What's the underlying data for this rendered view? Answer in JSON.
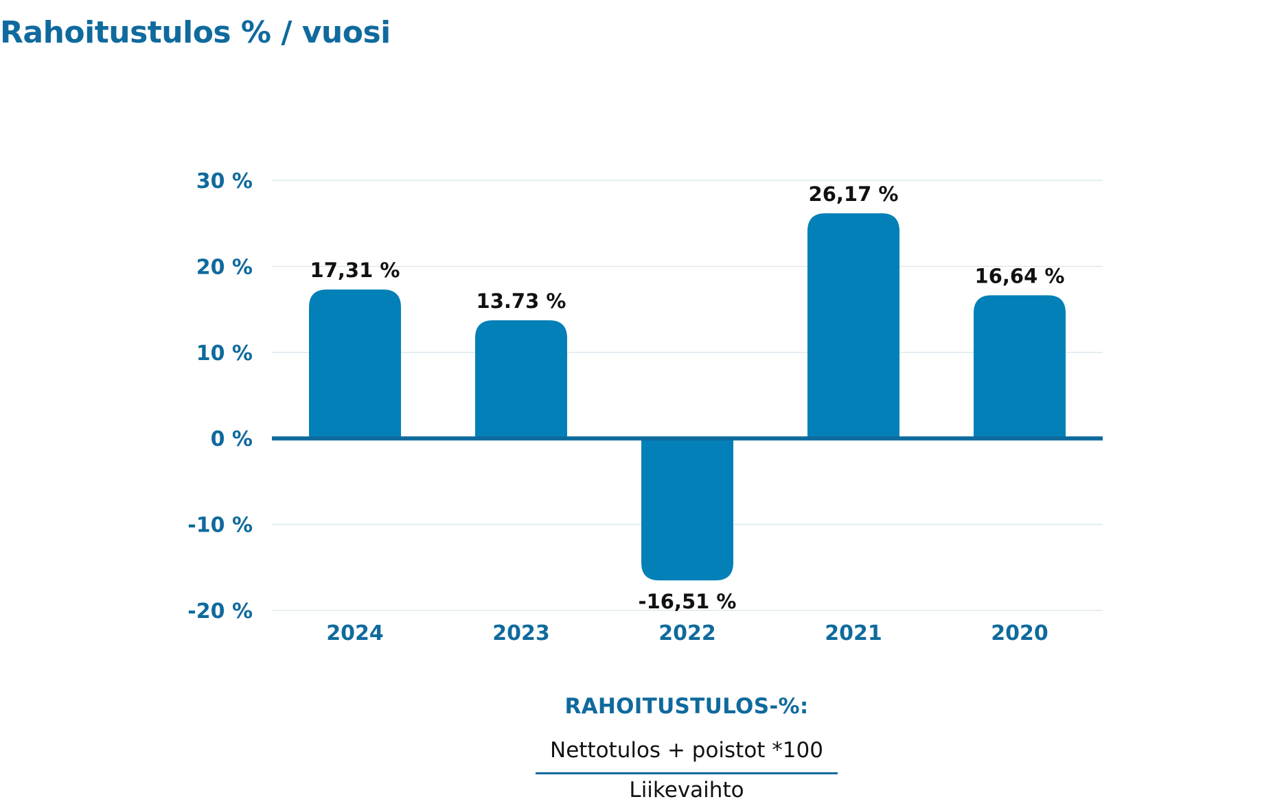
{
  "title": "Rahoitustulos % / vuosi",
  "colors": {
    "bar": "#0380b7",
    "axis_text": "#0f6a9d",
    "zero_line": "#0f6a9d",
    "grid": "#dde8ee",
    "value_label": "#111111"
  },
  "chart_data": {
    "type": "bar",
    "title": "Rahoitustulos % / vuosi",
    "categories": [
      "2024",
      "2023",
      "2022",
      "2021",
      "2020"
    ],
    "values": [
      17.31,
      13.73,
      -16.51,
      26.17,
      16.64
    ],
    "value_labels": [
      "17,31 %",
      "13.73 %",
      "-16,51 %",
      "26,17 %",
      "16,64 %"
    ],
    "ylim": [
      -20,
      30
    ],
    "yticks": [
      30,
      20,
      10,
      0,
      -10,
      -20
    ],
    "ytick_labels": [
      "30 %",
      "20 %",
      "10 %",
      "0 %",
      "-10 %",
      "-20 %"
    ],
    "xlabel": "",
    "ylabel": "",
    "grid": true,
    "legend": "none"
  },
  "formula": {
    "title": "RAHOITUSTULOS-%:",
    "numerator": "Nettotulos + poistot *100",
    "denominator": "Liikevaihto"
  }
}
